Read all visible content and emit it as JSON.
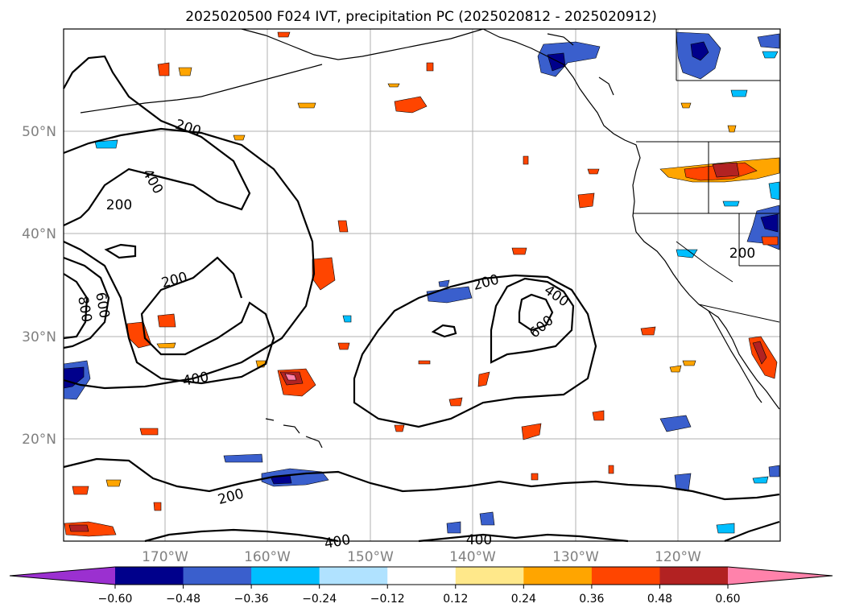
{
  "title": "2025020500 F024 IVT, precipitation PC (2025020812 - 2025020912)",
  "lat_labels": [
    "50°N",
    "40°N",
    "30°N",
    "20°N"
  ],
  "lon_labels": [
    "170°W",
    "160°W",
    "150°W",
    "140°W",
    "130°W",
    "120°W"
  ],
  "colorbar": {
    "ticks": [
      "−0.60",
      "−0.48",
      "−0.36",
      "−0.24",
      "−0.12",
      "0.12",
      "0.24",
      "0.36",
      "0.48",
      "0.60"
    ],
    "colors": [
      "#9b30d0",
      "#00008b",
      "#3a5fcd",
      "#00bfff",
      "#b0e2ff",
      "#ffffff",
      "#ffe88a",
      "#ffa500",
      "#ff4500",
      "#b22222",
      "#ff82ab"
    ]
  },
  "contour_labels": [
    "200",
    "400",
    "200",
    "200",
    "800",
    "600",
    "400",
    "200",
    "400",
    "600",
    "200",
    "200",
    "400",
    "400"
  ],
  "colors": {
    "land_line": "#000000",
    "grid": "#b0b0b0",
    "contour": "#000000"
  }
}
